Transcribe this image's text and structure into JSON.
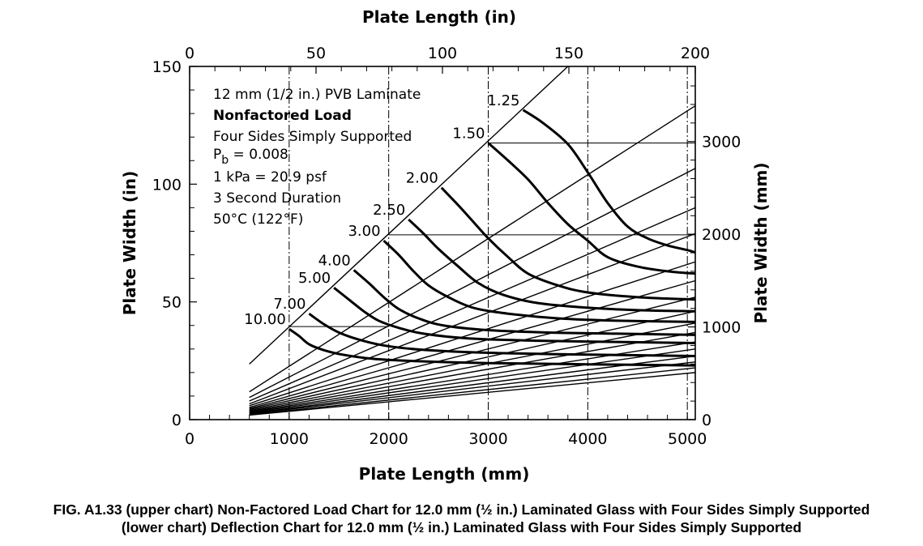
{
  "chart_data": {
    "type": "line",
    "title": "",
    "xlabel_bottom": "Plate Length (mm)",
    "xlabel_top": "Plate Length (in)",
    "ylabel_left": "Plate Width (in)",
    "ylabel_right": "Plate Width (mm)",
    "x_mm_range": [
      0,
      5080
    ],
    "y_in_range": [
      0,
      150
    ],
    "x_mm_ticks": [
      "0",
      "1000",
      "2000",
      "3000",
      "4000",
      "5000"
    ],
    "x_in_ticks": [
      "0",
      "50",
      "100",
      "150",
      "200"
    ],
    "y_in_ticks": [
      "0",
      "50",
      "100",
      "150"
    ],
    "y_mm_ticks": [
      "0",
      "1000",
      "2000",
      "3000"
    ],
    "annotation_lines": [
      "12 mm (1/2 in.) PVB Laminate",
      "Nonfactored Load",
      "Four Sides Simply Supported",
      "P",
      "b",
      " = 0.008",
      "1 kPa = 20.9 psf",
      "3 Second Duration",
      "50°C (122°F)"
    ],
    "aspect_ratio_lines": [
      {
        "x1_mm": 600,
        "y1_in": 23.6,
        "x2_mm": 3800,
        "y2_in": 150
      },
      {
        "x1_mm": 600,
        "y1_in": 11.8,
        "x2_mm": 5080,
        "y2_in": 133.3
      },
      {
        "x1_mm": 600,
        "y1_in": 9.4,
        "x2_mm": 5080,
        "y2_in": 106.7
      },
      {
        "x1_mm": 600,
        "y1_in": 7.9,
        "x2_mm": 5080,
        "y2_in": 90.0
      },
      {
        "x1_mm": 600,
        "y1_in": 6.7,
        "x2_mm": 5080,
        "y2_in": 79.0
      },
      {
        "x1_mm": 600,
        "y1_in": 5.9,
        "x2_mm": 5080,
        "y2_in": 67.0
      },
      {
        "x1_mm": 600,
        "y1_in": 5.2,
        "x2_mm": 5080,
        "y2_in": 59.0
      },
      {
        "x1_mm": 600,
        "y1_in": 4.7,
        "x2_mm": 5080,
        "y2_in": 52.0
      },
      {
        "x1_mm": 600,
        "y1_in": 4.3,
        "x2_mm": 5080,
        "y2_in": 46.0
      },
      {
        "x1_mm": 600,
        "y1_in": 3.9,
        "x2_mm": 5080,
        "y2_in": 41.0
      },
      {
        "x1_mm": 600,
        "y1_in": 3.5,
        "x2_mm": 5080,
        "y2_in": 37.0
      },
      {
        "x1_mm": 600,
        "y1_in": 3.2,
        "x2_mm": 5080,
        "y2_in": 33.0
      },
      {
        "x1_mm": 600,
        "y1_in": 2.9,
        "x2_mm": 5080,
        "y2_in": 30.0
      },
      {
        "x1_mm": 600,
        "y1_in": 2.6,
        "x2_mm": 5080,
        "y2_in": 27.0
      },
      {
        "x1_mm": 600,
        "y1_in": 2.4,
        "x2_mm": 5080,
        "y2_in": 24.5
      },
      {
        "x1_mm": 600,
        "y1_in": 2.1,
        "x2_mm": 5080,
        "y2_in": 22.0
      },
      {
        "x1_mm": 600,
        "y1_in": 1.9,
        "x2_mm": 5080,
        "y2_in": 20.0
      }
    ],
    "reference_lines": {
      "vertical_mm": [
        1000,
        2000,
        3000,
        4000,
        5000
      ],
      "horizontal": [
        {
          "y_in": 39.5,
          "x1_mm": 1000,
          "x2_mm": 2000
        },
        {
          "y_in": 78.5,
          "x1_mm": 2000,
          "x2_mm": 5080
        },
        {
          "y_in": 117.5,
          "x1_mm": 3000,
          "x2_mm": 5080
        }
      ]
    },
    "series": [
      {
        "name": "1.25",
        "points": [
          [
            3350,
            131.5
          ],
          [
            3550,
            126
          ],
          [
            3800,
            117
          ],
          [
            4000,
            105
          ],
          [
            4200,
            92
          ],
          [
            4400,
            82
          ],
          [
            4600,
            77
          ],
          [
            4800,
            74
          ],
          [
            5000,
            72
          ],
          [
            5080,
            71
          ]
        ]
      },
      {
        "name": "1.50",
        "points": [
          [
            3000,
            117.5
          ],
          [
            3200,
            110
          ],
          [
            3400,
            102
          ],
          [
            3600,
            92
          ],
          [
            3800,
            83
          ],
          [
            4000,
            76
          ],
          [
            4200,
            69
          ],
          [
            4500,
            65
          ],
          [
            4800,
            63
          ],
          [
            5080,
            62
          ]
        ]
      },
      {
        "name": "2.00",
        "points": [
          [
            2530,
            98.5
          ],
          [
            2700,
            91
          ],
          [
            2850,
            84
          ],
          [
            3000,
            77
          ],
          [
            3200,
            69
          ],
          [
            3400,
            62
          ],
          [
            3700,
            57
          ],
          [
            4000,
            54
          ],
          [
            4500,
            52
          ],
          [
            5080,
            51
          ]
        ]
      },
      {
        "name": "2.50",
        "points": [
          [
            2200,
            85
          ],
          [
            2350,
            79
          ],
          [
            2500,
            72.5
          ],
          [
            2700,
            65
          ],
          [
            2900,
            58
          ],
          [
            3150,
            53
          ],
          [
            3500,
            49.5
          ],
          [
            4000,
            47.5
          ],
          [
            4500,
            46.5
          ],
          [
            5080,
            46
          ]
        ]
      },
      {
        "name": "3.00",
        "points": [
          [
            1950,
            76
          ],
          [
            2100,
            70
          ],
          [
            2250,
            63
          ],
          [
            2400,
            57
          ],
          [
            2600,
            52
          ],
          [
            2850,
            47.5
          ],
          [
            3200,
            45
          ],
          [
            3700,
            43
          ],
          [
            4300,
            42
          ],
          [
            5080,
            41.5
          ]
        ]
      },
      {
        "name": "4.00",
        "points": [
          [
            1650,
            63.5
          ],
          [
            1800,
            58
          ],
          [
            1950,
            52
          ],
          [
            2100,
            47
          ],
          [
            2300,
            43
          ],
          [
            2550,
            40
          ],
          [
            3000,
            38
          ],
          [
            3600,
            37
          ],
          [
            4300,
            36.5
          ],
          [
            5080,
            36
          ]
        ]
      },
      {
        "name": "5.00",
        "points": [
          [
            1450,
            56
          ],
          [
            1600,
            51
          ],
          [
            1750,
            46
          ],
          [
            1900,
            42
          ],
          [
            2100,
            39
          ],
          [
            2350,
            36.5
          ],
          [
            2800,
            34.5
          ],
          [
            3500,
            33.5
          ],
          [
            4300,
            33
          ],
          [
            5080,
            32.5
          ]
        ]
      },
      {
        "name": "7.00",
        "points": [
          [
            1200,
            45
          ],
          [
            1350,
            40.5
          ],
          [
            1500,
            37
          ],
          [
            1700,
            34
          ],
          [
            1950,
            31.5
          ],
          [
            2300,
            29.8
          ],
          [
            2900,
            28.5
          ],
          [
            3700,
            27.8
          ],
          [
            5080,
            27
          ]
        ]
      },
      {
        "name": "10.00",
        "points": [
          [
            1000,
            38.5
          ],
          [
            1100,
            35.5
          ],
          [
            1200,
            32
          ],
          [
            1350,
            29.5
          ],
          [
            1550,
            27.5
          ],
          [
            1850,
            25.8
          ],
          [
            2300,
            24.8
          ],
          [
            3000,
            24
          ],
          [
            4000,
            23.5
          ],
          [
            5080,
            23
          ]
        ]
      }
    ],
    "grid": false,
    "legend": "none"
  },
  "caption": {
    "line1": "FIG. A1.33 (upper chart) Non-Factored Load Chart for 12.0 mm (½ in.) Laminated Glass with Four Sides Simply Supported",
    "line2": "(lower chart) Deflection Chart for 12.0 mm (½ in.) Laminated Glass with Four Sides Simply Supported"
  }
}
